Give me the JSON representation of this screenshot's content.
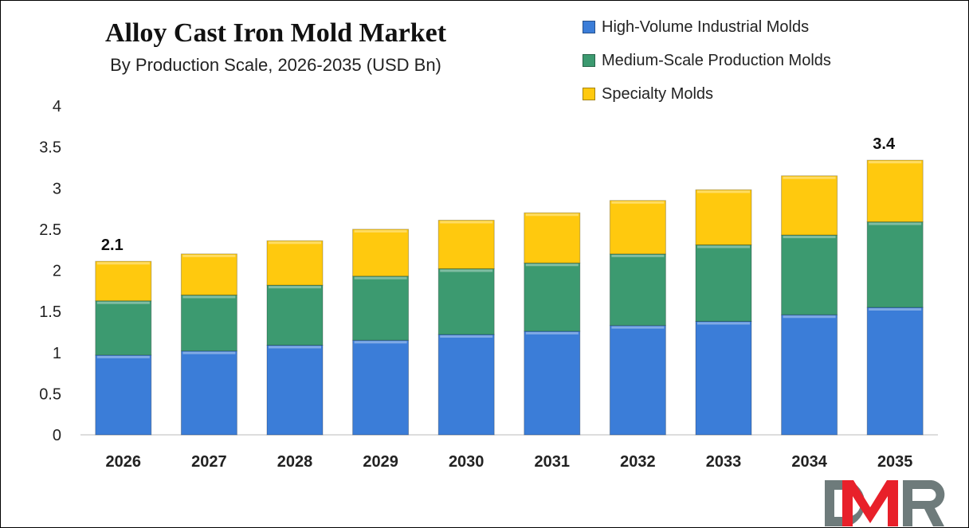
{
  "chart_data": {
    "type": "bar",
    "stacked": true,
    "title": "Alloy Cast Iron Mold Market",
    "subtitle": "By Production Scale, 2026-2035 (USD Bn)",
    "categories": [
      "2026",
      "2027",
      "2028",
      "2029",
      "2030",
      "2031",
      "2032",
      "2033",
      "2034",
      "2035"
    ],
    "series": [
      {
        "name": "High-Volume Industrial Molds",
        "color": "#3B7DD8",
        "values": [
          0.97,
          1.02,
          1.09,
          1.15,
          1.22,
          1.26,
          1.33,
          1.38,
          1.46,
          1.55
        ]
      },
      {
        "name": "Medium-Scale Production Molds",
        "color": "#3C9A70",
        "values": [
          0.66,
          0.68,
          0.73,
          0.78,
          0.8,
          0.83,
          0.87,
          0.93,
          0.97,
          1.04
        ]
      },
      {
        "name": "Specialty Molds",
        "color": "#FFC90E",
        "values": [
          0.48,
          0.5,
          0.54,
          0.57,
          0.59,
          0.61,
          0.65,
          0.67,
          0.72,
          0.75
        ]
      }
    ],
    "data_labels": [
      {
        "category": "2026",
        "text": "2.1"
      },
      {
        "category": "2035",
        "text": "3.4"
      }
    ],
    "ylim": [
      0,
      4
    ],
    "yticks": [
      "0",
      "0.5",
      "1",
      "1.5",
      "2",
      "2.5",
      "3",
      "3.5",
      "4"
    ],
    "grid": false,
    "legend": "top-right"
  },
  "logo": {
    "text": "DMR",
    "colors": {
      "D": "#6E7B7B",
      "M": "#E8202A",
      "R": "#6E7B7B"
    }
  }
}
